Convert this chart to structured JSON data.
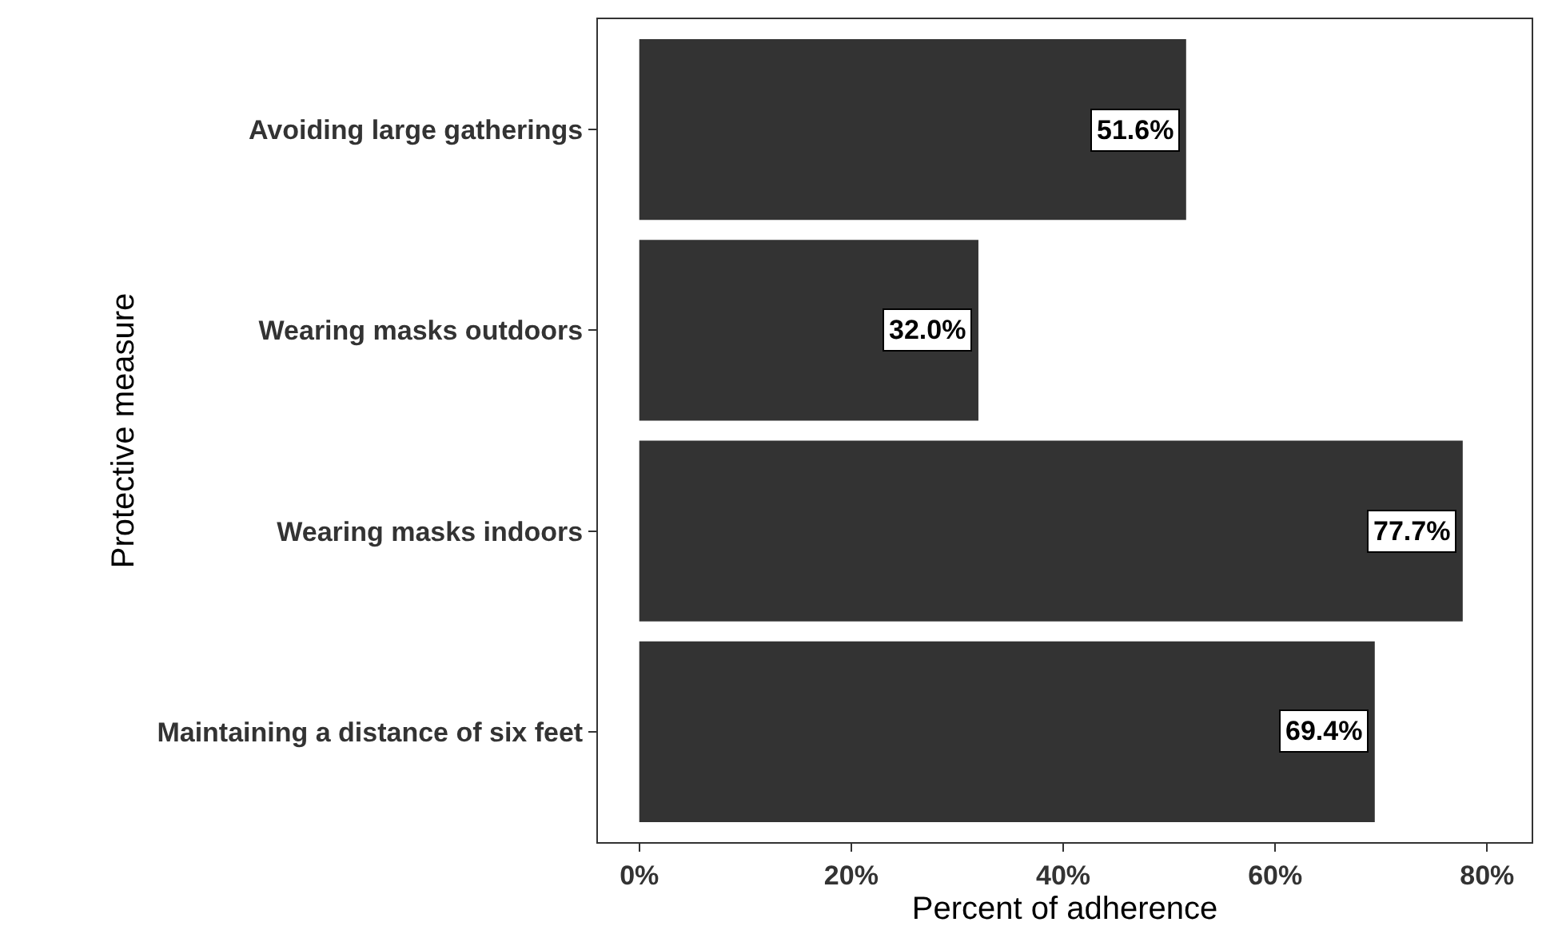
{
  "chart_data": {
    "type": "bar",
    "orientation": "horizontal",
    "xlabel": "Percent of adherence",
    "ylabel": "Protective measure",
    "categories": [
      "Avoiding large gatherings",
      "Wearing masks outdoors",
      "Wearing masks indoors",
      "Maintaining a distance of six feet"
    ],
    "values": [
      51.6,
      32.0,
      77.7,
      69.4
    ],
    "value_labels": [
      "51.6%",
      "32.0%",
      "77.7%",
      "69.4%"
    ],
    "color": "#333333",
    "xlim": [
      -3.9,
      84.2
    ],
    "xticks": [
      {
        "value": 0,
        "label": "0%"
      },
      {
        "value": 20,
        "label": "20%"
      },
      {
        "value": 40,
        "label": "40%"
      },
      {
        "value": 60,
        "label": "60%"
      },
      {
        "value": 80,
        "label": "80%"
      }
    ],
    "grid": false,
    "legend": false
  }
}
